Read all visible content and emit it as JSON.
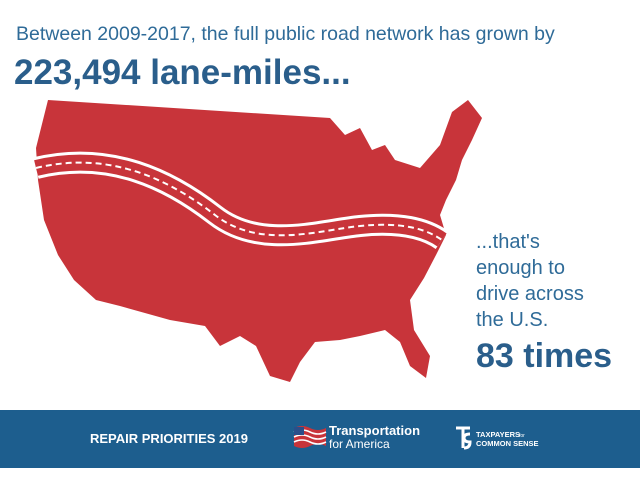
{
  "header": {
    "subtitle": "Between 2009-2017, the full public road network has grown by",
    "headline": "223,494 lane-miles..."
  },
  "callout": {
    "lines": [
      "...that's",
      "enough to",
      "drive across",
      "the U.S."
    ],
    "emphasis": "83 times"
  },
  "footer": {
    "campaign": "REPAIR PRIORITIES 2019",
    "logos": [
      {
        "lines": [
          "Transportation",
          "for America"
        ]
      },
      {
        "lines": [
          "TAXPAYERS",
          "for",
          "COMMON SENSE"
        ]
      }
    ]
  }
}
